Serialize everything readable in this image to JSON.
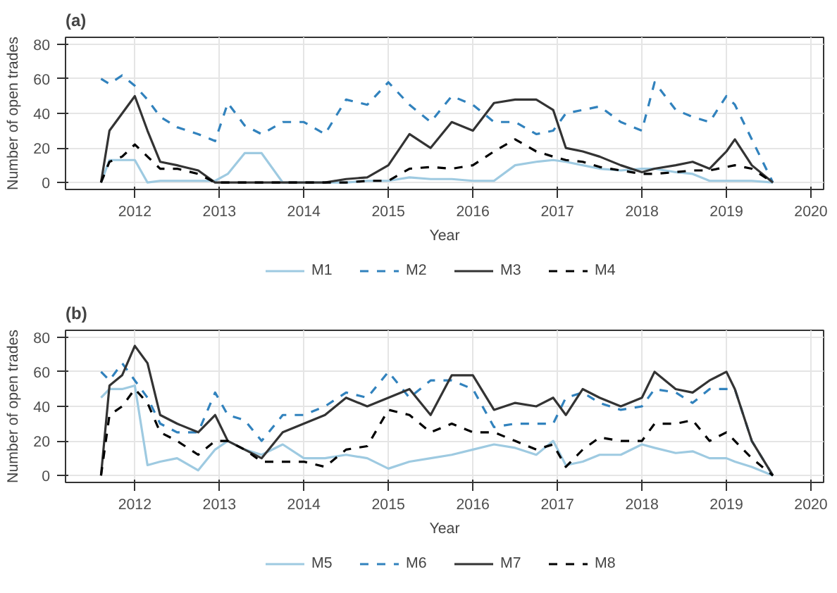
{
  "chart_data": [
    {
      "type": "line",
      "title": "(a)",
      "xlabel": "Year",
      "ylabel": "Number of open trades",
      "x": [
        2011.6,
        2011.7,
        2011.85,
        2012.0,
        2012.15,
        2012.3,
        2012.5,
        2012.75,
        2012.95,
        2013.1,
        2013.3,
        2013.5,
        2013.75,
        2014.0,
        2014.25,
        2014.5,
        2014.75,
        2015.0,
        2015.25,
        2015.5,
        2015.75,
        2016.0,
        2016.25,
        2016.5,
        2016.75,
        2016.95,
        2017.1,
        2017.3,
        2017.5,
        2017.75,
        2018.0,
        2018.15,
        2018.4,
        2018.6,
        2018.8,
        2019.0,
        2019.1,
        2019.3,
        2019.55
      ],
      "series": [
        {
          "name": "M1",
          "color": "#9ecae1",
          "line_style": "solid",
          "values": [
            0,
            13,
            13,
            13,
            0,
            1,
            1,
            1,
            1,
            5,
            17,
            17,
            0,
            0,
            0,
            0,
            1,
            1,
            3,
            2,
            2,
            1,
            1,
            10,
            12,
            13,
            12,
            10,
            8,
            7,
            8,
            8,
            6,
            5,
            1,
            1,
            1,
            1,
            0
          ]
        },
        {
          "name": "M2",
          "color": "#3182bd",
          "line_style": "dashed",
          "values": [
            60,
            57,
            62,
            56,
            48,
            38,
            32,
            28,
            24,
            46,
            33,
            28,
            35,
            35,
            28,
            48,
            45,
            58,
            45,
            35,
            50,
            45,
            35,
            35,
            28,
            30,
            40,
            42,
            44,
            35,
            30,
            58,
            42,
            38,
            35,
            50,
            45,
            25,
            0
          ]
        },
        {
          "name": "M3",
          "color": "#333333",
          "line_style": "solid",
          "values": [
            0,
            30,
            40,
            50,
            30,
            12,
            10,
            7,
            0,
            0,
            0,
            0,
            0,
            0,
            0,
            2,
            3,
            10,
            28,
            20,
            35,
            30,
            46,
            48,
            48,
            42,
            20,
            18,
            15,
            10,
            6,
            8,
            10,
            12,
            8,
            18,
            25,
            10,
            0
          ]
        },
        {
          "name": "M4",
          "color": "#000000",
          "line_style": "dashed",
          "values": [
            0,
            12,
            15,
            22,
            15,
            8,
            8,
            5,
            0,
            0,
            0,
            0,
            0,
            0,
            0,
            0,
            1,
            1,
            8,
            9,
            8,
            10,
            18,
            25,
            18,
            15,
            13,
            12,
            9,
            7,
            5,
            5,
            6,
            7,
            7,
            9,
            10,
            8,
            0
          ]
        }
      ],
      "xlim": [
        2011.18,
        2020.15
      ],
      "xticks": [
        2012,
        2013,
        2014,
        2015,
        2016,
        2017,
        2018,
        2019,
        2020
      ],
      "ylim": [
        -4,
        84
      ],
      "yticks": [
        0,
        20,
        40,
        60,
        80
      ],
      "grid": true,
      "legend": "bottom"
    },
    {
      "type": "line",
      "title": "(b)",
      "xlabel": "Year",
      "ylabel": "Number of open trades",
      "x": [
        2011.6,
        2011.7,
        2011.85,
        2012.0,
        2012.15,
        2012.3,
        2012.5,
        2012.75,
        2012.95,
        2013.1,
        2013.3,
        2013.5,
        2013.75,
        2014.0,
        2014.25,
        2014.5,
        2014.75,
        2015.0,
        2015.25,
        2015.5,
        2015.75,
        2016.0,
        2016.25,
        2016.5,
        2016.75,
        2016.95,
        2017.1,
        2017.3,
        2017.5,
        2017.75,
        2018.0,
        2018.15,
        2018.4,
        2018.6,
        2018.8,
        2019.0,
        2019.1,
        2019.3,
        2019.55
      ],
      "series": [
        {
          "name": "M5",
          "color": "#9ecae1",
          "line_style": "solid",
          "values": [
            45,
            50,
            50,
            52,
            6,
            8,
            10,
            3,
            15,
            20,
            15,
            12,
            18,
            10,
            10,
            12,
            10,
            4,
            8,
            10,
            12,
            15,
            18,
            16,
            12,
            20,
            6,
            8,
            12,
            12,
            18,
            16,
            13,
            14,
            10,
            10,
            8,
            5,
            0
          ]
        },
        {
          "name": "M6",
          "color": "#3182bd",
          "line_style": "dashed",
          "values": [
            60,
            55,
            65,
            55,
            45,
            30,
            25,
            25,
            48,
            35,
            32,
            20,
            35,
            35,
            40,
            48,
            45,
            60,
            45,
            55,
            55,
            50,
            28,
            30,
            30,
            30,
            45,
            48,
            42,
            38,
            40,
            50,
            48,
            42,
            50,
            50,
            50,
            20,
            0
          ]
        },
        {
          "name": "M7",
          "color": "#333333",
          "line_style": "solid",
          "values": [
            0,
            52,
            58,
            75,
            65,
            35,
            30,
            25,
            35,
            20,
            15,
            10,
            25,
            30,
            35,
            45,
            40,
            45,
            50,
            35,
            58,
            58,
            38,
            42,
            40,
            45,
            35,
            50,
            45,
            40,
            45,
            60,
            50,
            48,
            55,
            60,
            50,
            20,
            0
          ]
        },
        {
          "name": "M8",
          "color": "#000000",
          "line_style": "dashed",
          "values": [
            0,
            35,
            40,
            50,
            42,
            25,
            20,
            12,
            20,
            20,
            15,
            8,
            8,
            8,
            5,
            15,
            17,
            38,
            35,
            25,
            30,
            25,
            25,
            20,
            15,
            18,
            5,
            15,
            22,
            20,
            20,
            30,
            30,
            32,
            20,
            25,
            20,
            10,
            0
          ]
        }
      ],
      "xlim": [
        2011.18,
        2020.15
      ],
      "xticks": [
        2012,
        2013,
        2014,
        2015,
        2016,
        2017,
        2018,
        2019,
        2020
      ],
      "ylim": [
        -4,
        84
      ],
      "yticks": [
        0,
        20,
        40,
        60,
        80
      ],
      "grid": true,
      "legend": "bottom"
    }
  ]
}
